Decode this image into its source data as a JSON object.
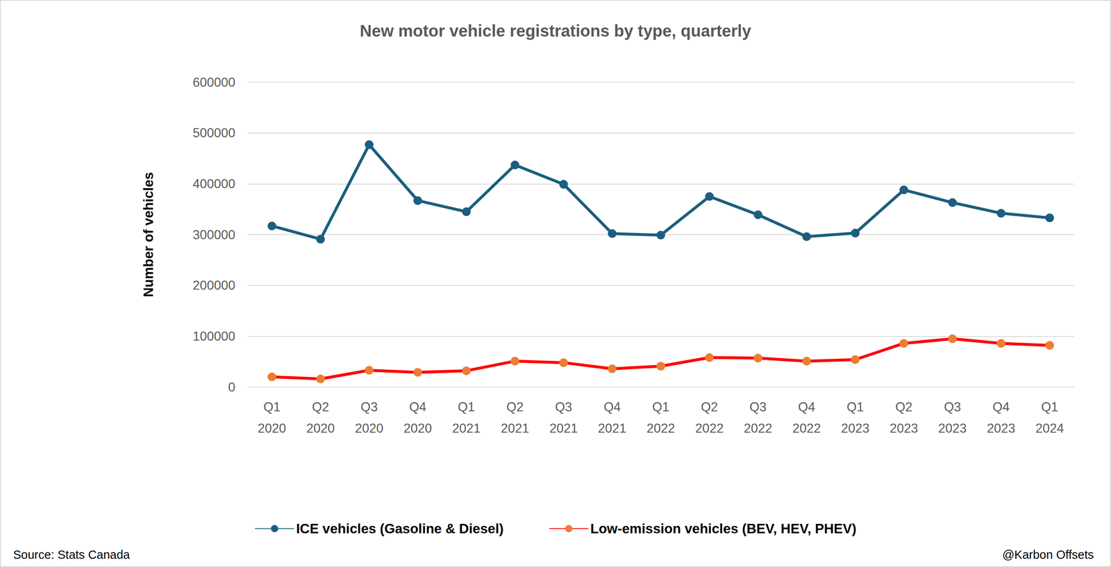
{
  "chart_data": {
    "type": "line",
    "title": "New motor vehicle registrations by type, quarterly",
    "y_label": "Number of vehicles",
    "categories": [
      "Q1\n2020",
      "Q2\n2020",
      "Q3\n2020",
      "Q4\n2020",
      "Q1\n2021",
      "Q2\n2021",
      "Q3\n2021",
      "Q4\n2021",
      "Q1\n2022",
      "Q2\n2022",
      "Q3\n2022",
      "Q4\n2022",
      "Q1\n2023",
      "Q2\n2023",
      "Q3\n2023",
      "Q4\n2023",
      "Q1\n2024"
    ],
    "series": [
      {
        "name": "ICE vehicles (Gasoline & Diesel)",
        "color": "#1b5e80",
        "marker": "circle",
        "values": [
          317000,
          291000,
          477000,
          367000,
          345000,
          437000,
          399000,
          302000,
          299000,
          375000,
          339000,
          296000,
          303000,
          388000,
          363000,
          342000,
          333000
        ]
      },
      {
        "name": "Low-emission vehicles (BEV, HEV, PHEV)",
        "color": "#ff0000",
        "marker": "circle",
        "values": [
          20000,
          16000,
          33000,
          29000,
          32000,
          51000,
          48000,
          36000,
          41000,
          58000,
          57000,
          51000,
          54000,
          86000,
          95000,
          86000,
          82000
        ]
      }
    ],
    "ylim": [
      0,
      600000
    ],
    "yticks": [
      0,
      100000,
      200000,
      300000,
      400000,
      500000,
      600000
    ],
    "grid": true,
    "legend": "bottom",
    "annotations": [
      "Source: Stats Canada",
      "@Karbon Offsets"
    ]
  }
}
